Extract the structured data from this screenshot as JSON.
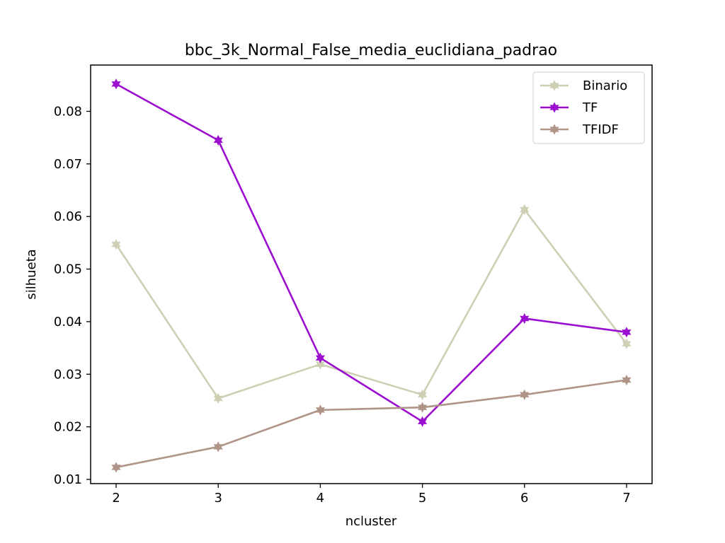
{
  "chart_data": {
    "type": "line",
    "title": "bbc_3k_Normal_False_media_euclidiana_padrao",
    "xlabel": "ncluster",
    "ylabel": "silhueta",
    "x": [
      2,
      3,
      4,
      5,
      6,
      7
    ],
    "xticks": [
      "2",
      "3",
      "4",
      "5",
      "6",
      "7"
    ],
    "xlim": [
      1.75,
      7.25
    ],
    "ylim": [
      0.0092,
      0.0888
    ],
    "yticks": [
      "0.01",
      "0.02",
      "0.03",
      "0.04",
      "0.05",
      "0.06",
      "0.07",
      "0.08"
    ],
    "ytick_values": [
      0.01,
      0.02,
      0.03,
      0.04,
      0.05,
      0.06,
      0.07,
      0.08
    ],
    "grid": false,
    "legend_position": "top-right",
    "marker": "star",
    "series": [
      {
        "name": "Binario",
        "color": "#cfcfb4",
        "values": [
          0.0547,
          0.0254,
          0.0319,
          0.0261,
          0.0613,
          0.0358
        ]
      },
      {
        "name": "TF",
        "color": "#9b0fcf",
        "values": [
          0.0852,
          0.0745,
          0.0331,
          0.021,
          0.0406,
          0.038
        ]
      },
      {
        "name": "TFIDF",
        "color": "#b09487",
        "values": [
          0.0123,
          0.0162,
          0.0232,
          0.0237,
          0.0261,
          0.0289
        ]
      }
    ]
  }
}
